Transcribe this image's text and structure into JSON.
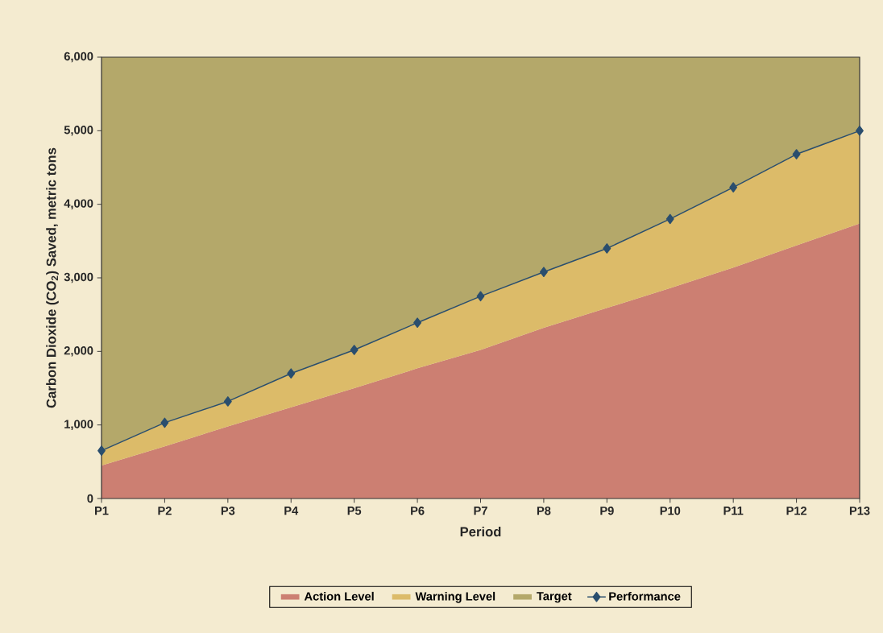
{
  "chart_data": {
    "type": "area",
    "stacked": true,
    "xlabel": "Period",
    "ylabel": "Carbon Dioxide (CO$_{2}$) Saved, metric tons",
    "categories": [
      "P1",
      "P2",
      "P3",
      "P4",
      "P5",
      "P6",
      "P7",
      "P8",
      "P9",
      "P10",
      "P11",
      "P12",
      "P13"
    ],
    "ylim": [
      0,
      6000
    ],
    "yticks": [
      0,
      {
        "value": 1000,
        "label": "1,000"
      },
      {
        "value": 2000,
        "label": "2,000"
      },
      {
        "value": 3000,
        "label": "3,000"
      },
      {
        "value": 4000,
        "label": "4,000"
      },
      {
        "value": 5000,
        "label": "5,000"
      },
      {
        "value": 6000,
        "label": "6,000"
      }
    ],
    "legend": "bottom",
    "series": [
      {
        "name": "Action Level",
        "color": "#cc7f72",
        "values": [
          450,
          710,
          980,
          1240,
          1500,
          1770,
          2020,
          2320,
          2590,
          2860,
          3140,
          3440,
          3740
        ]
      },
      {
        "name": "Warning Level",
        "color": "#dcbb69",
        "values": [
          200,
          320,
          340,
          460,
          520,
          620,
          730,
          760,
          810,
          940,
          1090,
          1240,
          1260
        ]
      },
      {
        "name": "Target",
        "color": "#b4a86a",
        "values": [
          5350,
          4970,
          4680,
          4300,
          3980,
          3610,
          3250,
          2920,
          2600,
          2200,
          1770,
          1320,
          1000
        ]
      },
      {
        "name": "Performance",
        "type": "line",
        "color": "#2a4e6e",
        "marker": "diamond",
        "line_style": "solid",
        "values": [
          650,
          1030,
          1320,
          1700,
          2020,
          2390,
          2750,
          3080,
          3400,
          3800,
          4230,
          4680,
          5000
        ]
      }
    ]
  }
}
